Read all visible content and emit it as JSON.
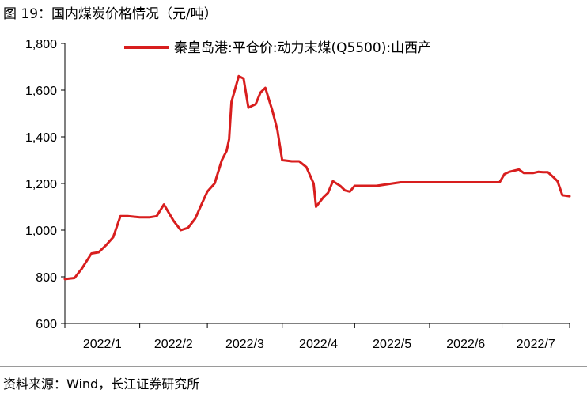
{
  "header": {
    "title": "图 19：国内煤炭价格情况（元/吨）"
  },
  "footer": {
    "source": "资料来源：Wind，长江证券研究所"
  },
  "colors": {
    "series": "#d81e1e",
    "axis": "#000000",
    "rule": "#9a9a9a"
  },
  "chart_data": {
    "type": "line",
    "title": "国内煤炭价格情况（元/吨）",
    "xlabel": "",
    "ylabel": "",
    "ylim": [
      600,
      1800
    ],
    "yticks": [
      "600",
      "800",
      "1,000",
      "1,200",
      "1,400",
      "1,600",
      "1,800"
    ],
    "ytick_values": [
      600,
      800,
      1000,
      1200,
      1400,
      1600,
      1800
    ],
    "xticks": [
      "2022/1",
      "2022/2",
      "2022/3",
      "2022/4",
      "2022/5",
      "2022/6",
      "2022/7"
    ],
    "xlim": [
      "2022-01-01",
      "2022-07-29"
    ],
    "grid": false,
    "legend_position": "top",
    "series": [
      {
        "name": "秦皇岛港:平仓价:动力末煤(Q5500):山西产",
        "x": [
          "2022-01-01",
          "2022-01-05",
          "2022-01-08",
          "2022-01-12",
          "2022-01-15",
          "2022-01-18",
          "2022-01-21",
          "2022-01-24",
          "2022-01-27",
          "2022-02-01",
          "2022-02-03",
          "2022-02-05",
          "2022-02-08",
          "2022-02-11",
          "2022-02-15",
          "2022-02-18",
          "2022-02-21",
          "2022-02-24",
          "2022-02-27",
          "2022-03-01",
          "2022-03-04",
          "2022-03-07",
          "2022-03-09",
          "2022-03-10",
          "2022-03-11",
          "2022-03-14",
          "2022-03-16",
          "2022-03-18",
          "2022-03-21",
          "2022-03-23",
          "2022-03-25",
          "2022-03-28",
          "2022-03-30",
          "2022-04-01",
          "2022-04-05",
          "2022-04-08",
          "2022-04-11",
          "2022-04-14",
          "2022-04-15",
          "2022-04-18",
          "2022-04-20",
          "2022-04-22",
          "2022-04-25",
          "2022-04-27",
          "2022-04-29",
          "2022-05-01",
          "2022-05-05",
          "2022-05-10",
          "2022-05-20",
          "2022-06-01",
          "2022-06-15",
          "2022-06-26",
          "2022-06-28",
          "2022-06-30",
          "2022-07-02",
          "2022-07-04",
          "2022-07-06",
          "2022-07-08",
          "2022-07-10",
          "2022-07-12",
          "2022-07-14",
          "2022-07-16",
          "2022-07-18",
          "2022-07-20",
          "2022-07-22",
          "2022-07-24",
          "2022-07-26",
          "2022-07-29"
        ],
        "values": [
          790,
          795,
          835,
          900,
          905,
          935,
          970,
          1060,
          1060,
          1055,
          1055,
          1055,
          1060,
          1110,
          1040,
          1000,
          1010,
          1050,
          1120,
          1165,
          1200,
          1300,
          1340,
          1390,
          1550,
          1660,
          1650,
          1525,
          1540,
          1590,
          1610,
          1510,
          1430,
          1300,
          1295,
          1295,
          1270,
          1200,
          1100,
          1140,
          1160,
          1210,
          1190,
          1170,
          1165,
          1190,
          1190,
          1190,
          1205,
          1205,
          1205,
          1205,
          1205,
          1205,
          1240,
          1250,
          1255,
          1260,
          1245,
          1245,
          1245,
          1250,
          1248,
          1248,
          1230,
          1210,
          1150,
          1145
        ]
      }
    ]
  }
}
